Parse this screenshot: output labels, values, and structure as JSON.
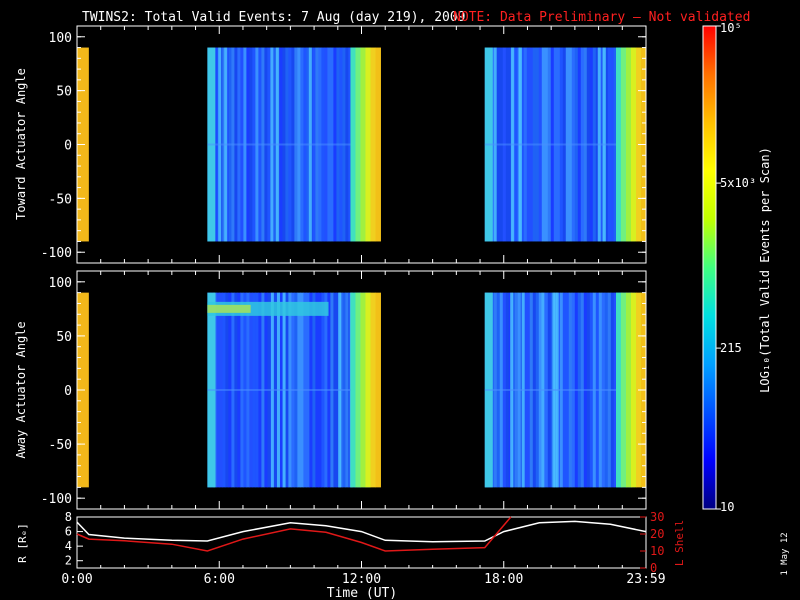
{
  "header": {
    "title": "TWINS2: Total Valid Events:  7 Aug (day 219), 2009",
    "note": "NOTE: Data Preliminary — Not validated"
  },
  "side_date": "1 May 12",
  "colors": {
    "background": "#000000",
    "note": "#ff2020",
    "l_shell_line": "#e01818",
    "r_line": "#ffffff",
    "fill_early": "#f2b81a",
    "fill_late_edge": "#f0c020"
  },
  "colorbar": {
    "label": "LOG₁₀(Total Valid Events per Scan)",
    "ticks": [
      {
        "label": "10⁵",
        "value": 100000
      },
      {
        "label": "5x10³",
        "value": 5000
      },
      {
        "label": "215",
        "value": 215
      },
      {
        "label": "10",
        "value": 10
      }
    ],
    "colors": [
      "#000080",
      "#0000ff",
      "#0050ff",
      "#00a0ff",
      "#00e0e0",
      "#40ff80",
      "#c0ff00",
      "#ffff00",
      "#ffc000",
      "#ff7000",
      "#ff0000"
    ]
  },
  "x_axis": {
    "label": "Time (UT)",
    "ticks": [
      "0:00",
      "6:00",
      "12:00",
      "18:00",
      "23:59"
    ],
    "range_hours": [
      0,
      24
    ]
  },
  "chart_data": [
    {
      "type": "heatmap",
      "panel": "toward",
      "ylabel": "Toward Actuator Angle",
      "ylim": [
        -110,
        110
      ],
      "y_ticks": [
        "100",
        "50",
        "0",
        "-50",
        "-100"
      ],
      "angle_range": [
        -90,
        90
      ],
      "segments": [
        {
          "start_h": 0.0,
          "end_h": 0.5,
          "level": "high"
        },
        {
          "start_h": 5.5,
          "end_h": 12.8,
          "level": "low",
          "late_edge": "high"
        },
        {
          "start_h": 17.2,
          "end_h": 24.0,
          "level": "low",
          "late_edge": "high"
        }
      ]
    },
    {
      "type": "heatmap",
      "panel": "away",
      "ylabel": "Away Actuator Angle",
      "ylim": [
        -110,
        110
      ],
      "y_ticks": [
        "100",
        "50",
        "0",
        "-50",
        "-100"
      ],
      "angle_range": [
        -90,
        90
      ],
      "band_angle": 75,
      "segments": [
        {
          "start_h": 0.0,
          "end_h": 0.5,
          "level": "high"
        },
        {
          "start_h": 5.5,
          "end_h": 12.8,
          "level": "low",
          "late_edge": "high"
        },
        {
          "start_h": 17.2,
          "end_h": 24.0,
          "level": "low",
          "late_edge": "high"
        }
      ]
    },
    {
      "type": "line",
      "panel": "ephemeris",
      "ylabel_left": "R [Rₑ]",
      "ylabel_right": "L Shell",
      "left_ticks": [
        "8",
        "6",
        "4",
        "2"
      ],
      "left_range": [
        1,
        8
      ],
      "right_ticks": [
        "30",
        "20",
        "10",
        "0"
      ],
      "right_range": [
        0,
        30
      ],
      "series": [
        {
          "name": "R",
          "axis": "left",
          "x": [
            0,
            0.5,
            2,
            4,
            5.5,
            7,
            9,
            10.5,
            12,
            13,
            15,
            17.2,
            18,
            19.5,
            21,
            22.5,
            24
          ],
          "y": [
            7.3,
            5.6,
            5.1,
            4.8,
            4.7,
            6.0,
            7.2,
            6.8,
            6.0,
            4.8,
            4.6,
            4.7,
            6.0,
            7.2,
            7.4,
            7.0,
            6.0
          ]
        },
        {
          "name": "L Shell",
          "axis": "right",
          "x": [
            0,
            0.5,
            2,
            4,
            5.5,
            7,
            9,
            10.5,
            12,
            13,
            15,
            17.2,
            18.3
          ],
          "y": [
            20,
            17,
            16,
            14,
            10,
            17,
            23,
            21,
            15,
            10,
            11,
            12,
            30
          ]
        }
      ]
    }
  ]
}
